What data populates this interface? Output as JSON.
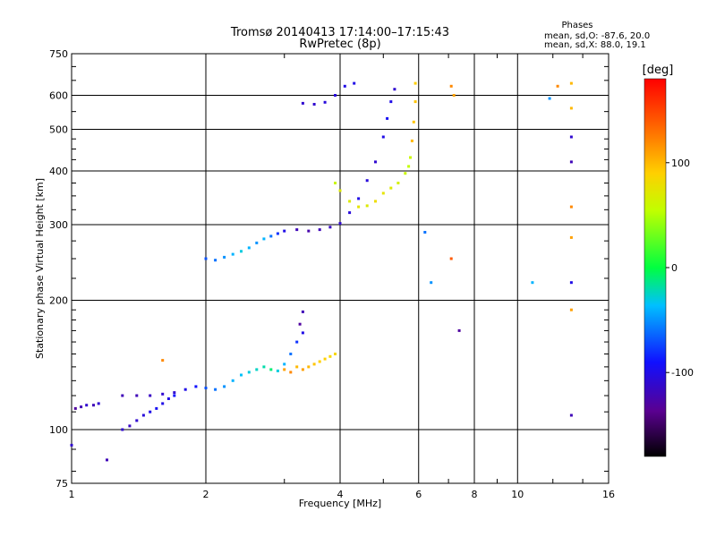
{
  "chart_data": {
    "type": "scatter",
    "title": "Tromsø 20140413 17:14:00–17:15:43",
    "subtitle": "RwPretec (8p)",
    "xlabel": "Frequency [MHz]",
    "ylabel": "Stationary phase Virtual Height [km]",
    "x_scale": "log",
    "y_scale": "log",
    "xlim": [
      1,
      16
    ],
    "ylim": [
      75,
      750
    ],
    "x_ticks": [
      "1",
      "2",
      "4",
      "6",
      "8",
      "10",
      "16"
    ],
    "y_ticks": [
      "75",
      "100",
      "200",
      "300",
      "400",
      "500",
      "600",
      "750"
    ],
    "grid": true,
    "phase_stats": {
      "heading": "Phases",
      "o_mode": "mean, sd,O: -87.6, 20.0",
      "x_mode": "mean, sd,X:  88.0, 19.1"
    },
    "colorbar": {
      "label": "[deg]",
      "ticks": [
        "100",
        "0",
        "-100"
      ],
      "tick_values": [
        100,
        0,
        -100
      ],
      "range": [
        -180,
        180
      ]
    },
    "series": [
      {
        "points": [
          [
            1.02,
            112,
            -130
          ],
          [
            1.05,
            113,
            -120
          ],
          [
            1.08,
            114,
            -110
          ],
          [
            1.12,
            114,
            -120
          ],
          [
            1.15,
            115,
            -110
          ],
          [
            1.3,
            100,
            -110
          ],
          [
            1.35,
            102,
            -115
          ],
          [
            1.4,
            105,
            -110
          ],
          [
            1.45,
            108,
            -105
          ],
          [
            1.5,
            110,
            -100
          ],
          [
            1.55,
            112,
            -95
          ],
          [
            1.6,
            115,
            -100
          ],
          [
            1.65,
            118,
            -100
          ],
          [
            1.7,
            120,
            -90
          ],
          [
            1.3,
            120,
            -120
          ],
          [
            1.4,
            120,
            -120
          ],
          [
            1.5,
            120,
            -115
          ],
          [
            1.6,
            121,
            -110
          ],
          [
            1.7,
            122,
            -110
          ],
          [
            1.8,
            124,
            -100
          ],
          [
            1.9,
            126,
            -90
          ],
          [
            2.0,
            125,
            -70
          ],
          [
            2.1,
            124,
            -60
          ],
          [
            2.2,
            126,
            -50
          ],
          [
            2.3,
            130,
            -40
          ],
          [
            2.4,
            134,
            -35
          ],
          [
            2.5,
            136,
            -30
          ],
          [
            2.6,
            138,
            -25
          ],
          [
            2.7,
            140,
            -20
          ],
          [
            2.8,
            138,
            -10
          ],
          [
            2.9,
            137,
            -30
          ],
          [
            3.0,
            142,
            -40
          ],
          [
            3.1,
            150,
            -60
          ],
          [
            3.2,
            160,
            -80
          ],
          [
            3.3,
            168,
            -100
          ],
          [
            3.25,
            176,
            -130
          ],
          [
            3.3,
            188,
            -120
          ],
          [
            2.0,
            250,
            -70
          ],
          [
            2.1,
            248,
            -60
          ],
          [
            2.2,
            252,
            -50
          ],
          [
            2.3,
            256,
            -40
          ],
          [
            2.4,
            260,
            -30
          ],
          [
            2.5,
            265,
            -40
          ],
          [
            2.6,
            272,
            -50
          ],
          [
            2.7,
            278,
            -40
          ],
          [
            2.8,
            282,
            -60
          ],
          [
            2.9,
            286,
            -80
          ],
          [
            3.0,
            290,
            -100
          ],
          [
            3.2,
            292,
            -120
          ],
          [
            3.4,
            290,
            -125
          ],
          [
            3.6,
            292,
            -120
          ],
          [
            3.8,
            296,
            -115
          ],
          [
            4.0,
            302,
            -110
          ],
          [
            4.2,
            320,
            -105
          ],
          [
            4.4,
            345,
            -100
          ],
          [
            4.6,
            380,
            -105
          ],
          [
            4.8,
            420,
            -110
          ],
          [
            5.0,
            480,
            -100
          ],
          [
            5.1,
            530,
            -95
          ],
          [
            5.2,
            580,
            -100
          ],
          [
            5.3,
            620,
            -110
          ],
          [
            3.3,
            575,
            -110
          ],
          [
            3.5,
            572,
            -110
          ],
          [
            3.7,
            578,
            -105
          ],
          [
            3.9,
            600,
            -105
          ],
          [
            4.1,
            630,
            -100
          ],
          [
            4.3,
            640,
            -100
          ],
          [
            3.9,
            375,
            60
          ],
          [
            4.0,
            360,
            70
          ],
          [
            4.2,
            340,
            70
          ],
          [
            4.4,
            330,
            75
          ],
          [
            4.6,
            332,
            70
          ],
          [
            4.8,
            340,
            80
          ],
          [
            5.0,
            355,
            75
          ],
          [
            5.2,
            365,
            70
          ],
          [
            5.4,
            375,
            65
          ],
          [
            5.6,
            395,
            60
          ],
          [
            5.7,
            410,
            55
          ],
          [
            5.75,
            430,
            60
          ],
          [
            3.2,
            140,
            100
          ],
          [
            3.3,
            138,
            110
          ],
          [
            3.4,
            140,
            100
          ],
          [
            3.5,
            142,
            95
          ],
          [
            3.6,
            144,
            90
          ],
          [
            3.7,
            146,
            90
          ],
          [
            3.8,
            148,
            85
          ],
          [
            3.9,
            150,
            85
          ],
          [
            3.0,
            138,
            110
          ],
          [
            3.1,
            136,
            120
          ],
          [
            5.8,
            470,
            100
          ],
          [
            5.85,
            520,
            95
          ],
          [
            5.9,
            580,
            95
          ],
          [
            5.9,
            640,
            90
          ],
          [
            7.1,
            630,
            120
          ],
          [
            7.2,
            600,
            110
          ],
          [
            13.2,
            640,
            100
          ],
          [
            13.2,
            560,
            100
          ],
          [
            13.2,
            480,
            -110
          ],
          [
            13.2,
            420,
            -120
          ],
          [
            13.2,
            330,
            120
          ],
          [
            13.2,
            280,
            110
          ],
          [
            13.2,
            220,
            -100
          ],
          [
            13.2,
            190,
            110
          ],
          [
            13.2,
            108,
            -120
          ],
          [
            10.8,
            220,
            -40
          ],
          [
            11.8,
            590,
            -50
          ],
          [
            12.3,
            630,
            120
          ],
          [
            6.4,
            220,
            -50
          ],
          [
            6.2,
            288,
            -60
          ],
          [
            7.1,
            250,
            140
          ],
          [
            7.4,
            170,
            -130
          ],
          [
            1.6,
            145,
            120
          ],
          [
            1.0,
            92,
            -110
          ],
          [
            1.2,
            85,
            -120
          ]
        ]
      }
    ]
  }
}
